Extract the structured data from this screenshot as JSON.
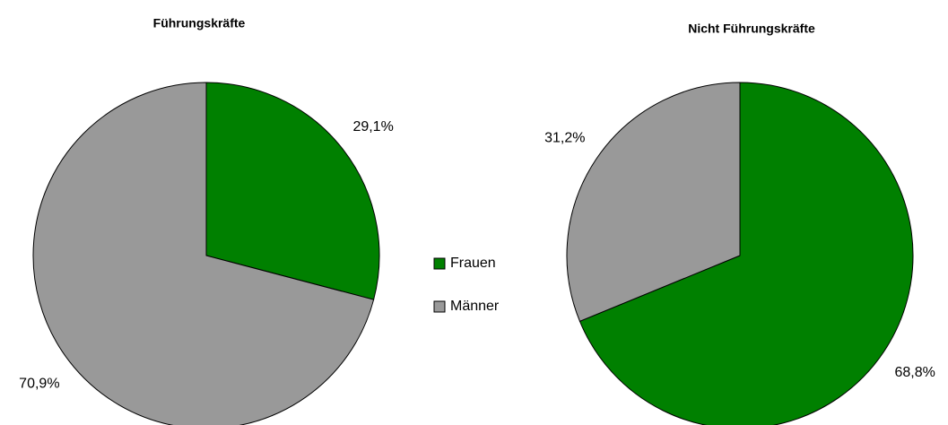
{
  "chart_data": [
    {
      "type": "pie",
      "title": "Führungskräfte",
      "categories": [
        "Frauen",
        "Männer"
      ],
      "values": [
        29.1,
        70.9
      ],
      "value_labels": [
        "29,1%",
        "70,9%"
      ],
      "colors": [
        "#008000",
        "#999999"
      ]
    },
    {
      "type": "pie",
      "title": "Nicht Führungskräfte",
      "categories": [
        "Frauen",
        "Männer"
      ],
      "values": [
        68.8,
        31.2
      ],
      "value_labels": [
        "68,8%",
        "31,2%"
      ],
      "colors": [
        "#008000",
        "#999999"
      ]
    }
  ]
}
